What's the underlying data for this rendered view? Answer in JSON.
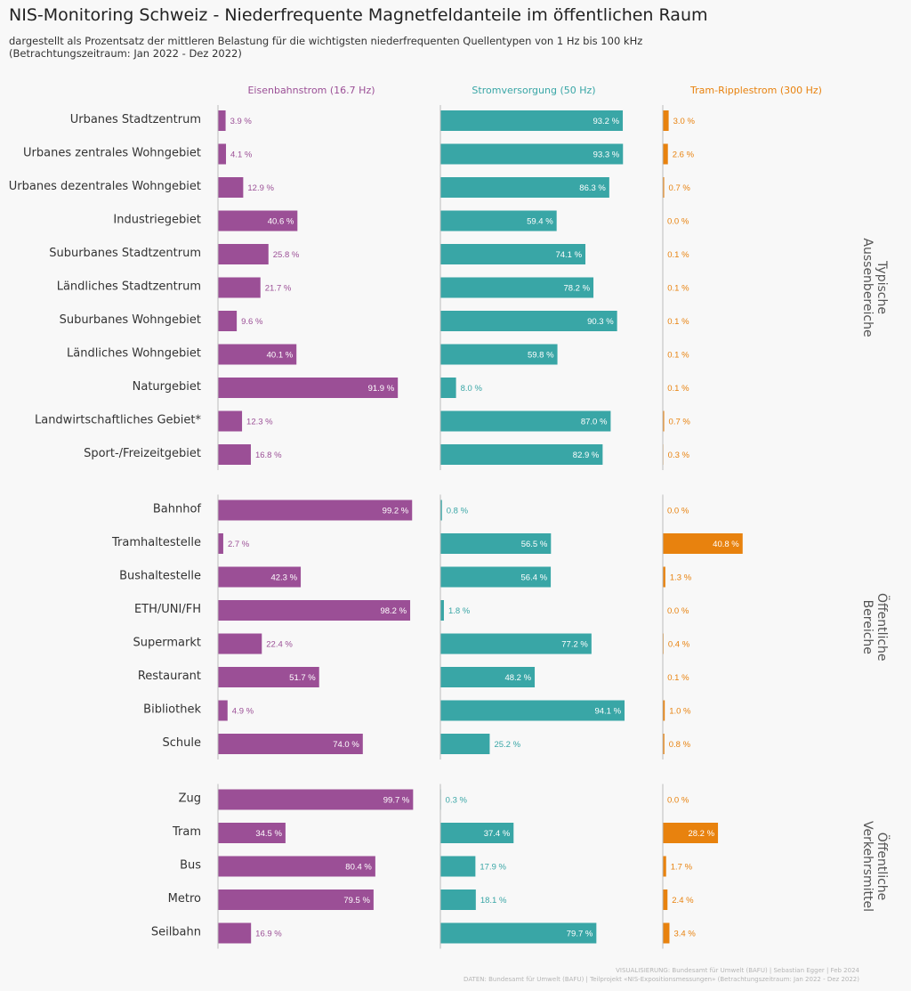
{
  "title": "NIS-Monitoring Schweiz - Niederfrequente Magnetfeldanteile im öffentlichen Raum",
  "subtitle_line1": "dargestellt als Prozentsatz der mittleren Belastung für die wichtigsten niederfrequenten Quellentypen von 1 Hz bis 100 kHz",
  "subtitle_line2": "(Betrachtungszeitraum: Jan 2022 - Dez 2022)",
  "footer_line1": "VISUALISIERUNG: Bundesamt für Umwelt (BAFU) | Sebastian Egger | Feb 2024",
  "footer_line2": "DATEN: Bundesamt für Umwelt (BAFU) | Teilprojekt «NIS-Expositionsmessungen» (Betrachtungszeitraum: Jan 2022 - Dez 2022)",
  "colors": {
    "eisenbahn": "#9b4f96",
    "strom": "#39a6a6",
    "tram": "#e8820e",
    "axis_line": "#bdbdbd",
    "group_label": "#555555",
    "category_label": "#333333",
    "sub_label": "#b0b0b0"
  },
  "chart_data": {
    "type": "bar",
    "orientation": "horizontal",
    "unit": "%",
    "xlim": [
      0,
      100
    ],
    "series": [
      {
        "name": "Eisenbahnstrom (16.7 Hz)",
        "key": "eisenbahn"
      },
      {
        "name": "Stromversorgung (50 Hz)",
        "key": "strom"
      },
      {
        "name": "Tram-Ripplestrom (300 Hz)",
        "key": "tram"
      }
    ],
    "groups": [
      {
        "label_lines": [
          "Typische",
          "Aussenbereiche"
        ],
        "rows": [
          {
            "label": "Urbanes Stadtzentrum",
            "values": [
              3.9,
              93.2,
              3.0
            ]
          },
          {
            "label": "Urbanes zentrales Wohngebiet",
            "values": [
              4.1,
              93.3,
              2.6
            ]
          },
          {
            "label": "Urbanes dezentrales Wohngebiet",
            "values": [
              12.9,
              86.3,
              0.7
            ]
          },
          {
            "label": "Industriegebiet",
            "values": [
              40.6,
              59.4,
              0.0
            ]
          },
          {
            "label": "Suburbanes Stadtzentrum",
            "values": [
              25.8,
              74.1,
              0.1
            ]
          },
          {
            "label": "Ländliches Stadtzentrum",
            "values": [
              21.7,
              78.2,
              0.1
            ]
          },
          {
            "label": "Suburbanes Wohngebiet",
            "values": [
              9.6,
              90.3,
              0.1
            ]
          },
          {
            "label": "Ländliches Wohngebiet",
            "values": [
              40.1,
              59.8,
              0.1
            ]
          },
          {
            "label": "Naturgebiet",
            "values": [
              91.9,
              8.0,
              0.1
            ]
          },
          {
            "label": "Landwirtschaftliches Gebiet*",
            "values": [
              12.3,
              87.0,
              0.7
            ]
          },
          {
            "label": "Sport-/Freizeitgebiet",
            "values": [
              16.8,
              82.9,
              0.3
            ]
          }
        ]
      },
      {
        "label_lines": [
          "Öffentliche",
          "Bereiche"
        ],
        "rows": [
          {
            "label": "Bahnhof",
            "values": [
              99.2,
              0.8,
              0.0
            ]
          },
          {
            "label": "Tramhaltestelle",
            "values": [
              2.7,
              56.5,
              40.8
            ]
          },
          {
            "label": "Bushaltestelle",
            "values": [
              42.3,
              56.4,
              1.3
            ]
          },
          {
            "label": "ETH/UNI/FH",
            "values": [
              98.2,
              1.8,
              0.0
            ]
          },
          {
            "label": "Supermarkt",
            "values": [
              22.4,
              77.2,
              0.4
            ]
          },
          {
            "label": "Restaurant",
            "values": [
              51.7,
              48.2,
              0.1
            ]
          },
          {
            "label": "Bibliothek",
            "values": [
              4.9,
              94.1,
              1.0
            ]
          },
          {
            "label": "Schule",
            "values": [
              74.0,
              25.2,
              0.8
            ]
          }
        ]
      },
      {
        "label_lines": [
          "Öffentliche",
          "Verkehrsmittel"
        ],
        "rows": [
          {
            "label": "Zug",
            "values": [
              99.7,
              0.3,
              0.0
            ]
          },
          {
            "label": "Tram",
            "values": [
              34.5,
              37.4,
              28.2
            ]
          },
          {
            "label": "Bus",
            "values": [
              80.4,
              17.9,
              1.7
            ]
          },
          {
            "label": "Metro",
            "values": [
              79.5,
              18.1,
              2.4
            ]
          },
          {
            "label": "Seilbahn",
            "values": [
              16.9,
              79.7,
              3.4
            ]
          }
        ]
      }
    ]
  }
}
